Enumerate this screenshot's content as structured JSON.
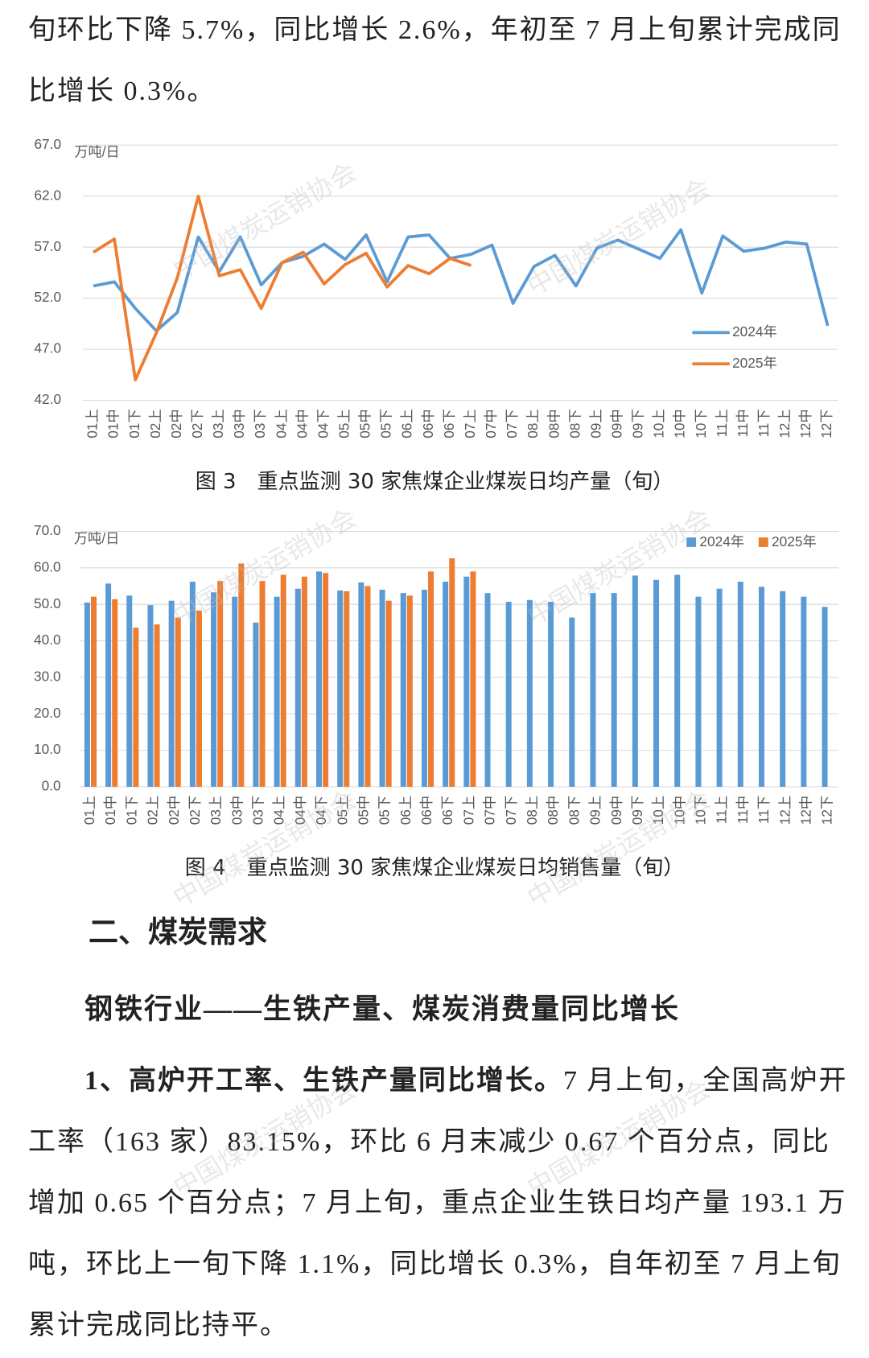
{
  "paragraph_1": "旬环比下降 5.7%，同比增长 2.6%，年初至 7 月上旬累计完成同比增长 0.3%。",
  "chart_data": [
    {
      "type": "line",
      "title": "图 3　重点监测 30 家焦煤企业煤炭日均产量（旬）",
      "unit_label": "万吨/日",
      "categories": [
        "01上",
        "01中",
        "01下",
        "02上",
        "02中",
        "02下",
        "03上",
        "03中",
        "03下",
        "04上",
        "04中",
        "04下",
        "05上",
        "05中",
        "05下",
        "06上",
        "06中",
        "06下",
        "07上",
        "07中",
        "07下",
        "08上",
        "08中",
        "08下",
        "09上",
        "09中",
        "09下",
        "10上",
        "10中",
        "10下",
        "11上",
        "11中",
        "11下",
        "12上",
        "12中",
        "12下"
      ],
      "series": [
        {
          "name": "2024年",
          "color": "#5b9bd5",
          "values": [
            53.2,
            53.6,
            51.0,
            48.8,
            50.6,
            58.0,
            54.6,
            58.0,
            53.3,
            55.5,
            56.1,
            57.3,
            55.8,
            58.2,
            53.6,
            58.0,
            58.2,
            55.9,
            56.3,
            57.2,
            51.5,
            55.1,
            56.2,
            53.2,
            56.9,
            57.7,
            56.8,
            55.9,
            58.7,
            52.5,
            58.1,
            56.6,
            56.9,
            57.5,
            57.3,
            49.3
          ]
        },
        {
          "name": "2025年",
          "color": "#ed7d31",
          "values": [
            56.5,
            57.8,
            44.0,
            48.6,
            54.0,
            62.0,
            54.2,
            54.8,
            51.0,
            55.5,
            56.5,
            53.4,
            55.3,
            56.4,
            53.1,
            55.2,
            54.4,
            55.9,
            55.2,
            null,
            null,
            null,
            null,
            null,
            null,
            null,
            null,
            null,
            null,
            null,
            null,
            null,
            null,
            null,
            null,
            null
          ]
        }
      ],
      "ylim": [
        42,
        67
      ],
      "yticks": [
        {
          "value": 42,
          "label": "42.0"
        },
        {
          "value": 47,
          "label": "47.0"
        },
        {
          "value": 52,
          "label": "52.0"
        },
        {
          "value": 57,
          "label": "57.0"
        },
        {
          "value": 62,
          "label": "62.0"
        },
        {
          "value": 67,
          "label": "67.0"
        }
      ],
      "grid": true,
      "legend": "right"
    },
    {
      "type": "bar",
      "title": "图 4　重点监测 30 家焦煤企业煤炭日均销售量（旬）",
      "unit_label": "万吨/日",
      "categories": [
        "01上",
        "01中",
        "01下",
        "02上",
        "02中",
        "02下",
        "03上",
        "03中",
        "03下",
        "04上",
        "04中",
        "04下",
        "05上",
        "05中",
        "05下",
        "06上",
        "06中",
        "06下",
        "07上",
        "07中",
        "07下",
        "08上",
        "08中",
        "08下",
        "09上",
        "09中",
        "09下",
        "10上",
        "10中",
        "10下",
        "11上",
        "11中",
        "11下",
        "12上",
        "12中",
        "12下"
      ],
      "series": [
        {
          "name": "2024年",
          "color": "#5b9bd5",
          "values": [
            50.5,
            55.7,
            52.4,
            49.8,
            51.0,
            56.2,
            53.3,
            52.1,
            45.0,
            52.1,
            54.3,
            59.0,
            53.8,
            56.0,
            54.0,
            53.1,
            54.0,
            56.2,
            57.6,
            53.1,
            50.7,
            51.2,
            50.7,
            46.4,
            53.1,
            53.1,
            57.9,
            56.7,
            58.1,
            52.1,
            54.3,
            56.2,
            54.8,
            53.6,
            52.1,
            49.3
          ]
        },
        {
          "name": "2025年",
          "color": "#ed7d31",
          "values": [
            52.1,
            51.4,
            43.6,
            44.5,
            46.4,
            48.3,
            56.4,
            61.2,
            56.4,
            58.1,
            57.6,
            58.6,
            53.6,
            55.0,
            51.0,
            52.4,
            59.0,
            62.6,
            59.0,
            null,
            null,
            null,
            null,
            null,
            null,
            null,
            null,
            null,
            null,
            null,
            null,
            null,
            null,
            null,
            null,
            null
          ]
        }
      ],
      "ylim": [
        0,
        70
      ],
      "yticks": [
        {
          "value": 0,
          "label": "0.0"
        },
        {
          "value": 10,
          "label": "10.0"
        },
        {
          "value": 20,
          "label": "20.0"
        },
        {
          "value": 30,
          "label": "30.0"
        },
        {
          "value": 40,
          "label": "40.0"
        },
        {
          "value": 50,
          "label": "50.0"
        },
        {
          "value": 60,
          "label": "60.0"
        },
        {
          "value": 70,
          "label": "70.0"
        }
      ],
      "grid": true,
      "legend": "top-right"
    }
  ],
  "heading": "二、煤炭需求",
  "subheading": "钢铁行业——生铁产量、煤炭消费量同比增长",
  "paragraph_2": {
    "lead": "1、高炉开工率、生铁产量同比增长。",
    "body": "7 月上旬，全国高炉开工率（163 家）83.15%，环比 6 月末减少 0.67 个百分点，同比增加 0.65 个百分点；7 月上旬，重点企业生铁日均产量 193.1 万吨，环比上一旬下降 1.1%，同比增长 0.3%，自年初至 7 月上旬累计完成同比持平。"
  },
  "watermark": "中国煤炭运销协会"
}
